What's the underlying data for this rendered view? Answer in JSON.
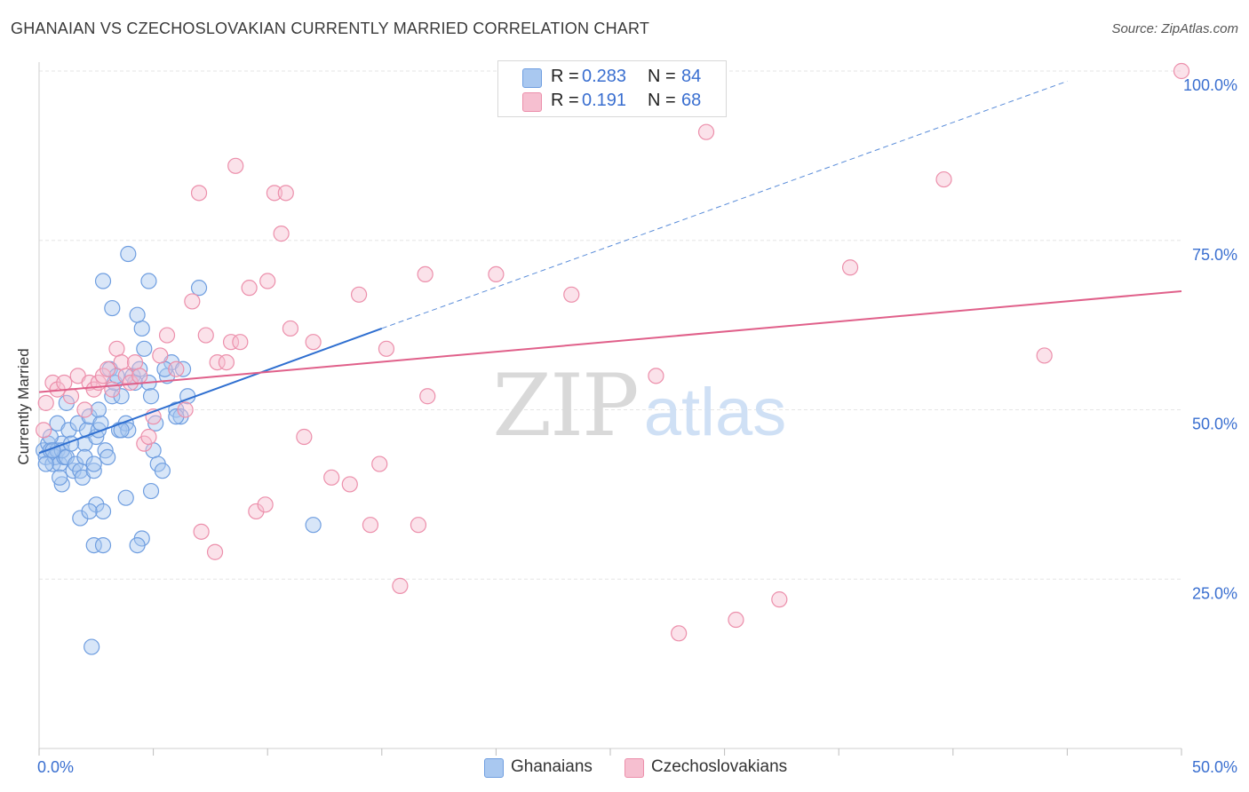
{
  "header": {
    "title": "GHANAIAN VS CZECHOSLOVAKIAN CURRENTLY MARRIED CORRELATION CHART",
    "source": "Source: ZipAtlas.com"
  },
  "watermark": {
    "zip": "ZIP",
    "atlas": "atlas"
  },
  "legend_top": {
    "rows": [
      {
        "r_label": "R =",
        "r_value": "0.283",
        "n_label": "N =",
        "n_value": "84"
      },
      {
        "r_label": "R =",
        "r_value": "0.191",
        "n_label": "N =",
        "n_value": "68"
      }
    ]
  },
  "legend_bottom": {
    "items": [
      {
        "label": "Ghanaians"
      },
      {
        "label": "Czechoslovakians"
      }
    ]
  },
  "colors": {
    "blue_fill": "#a9c8f0",
    "blue_stroke": "#6f9ee0",
    "blue_line": "#2f6fd0",
    "pink_fill": "#f6bfd0",
    "pink_stroke": "#ec8fab",
    "pink_line": "#e0608a",
    "tick_label": "#3a6fd0",
    "grid": "#e6e6e6"
  },
  "chart_data": {
    "type": "scatter",
    "title": "GHANAIAN VS CZECHOSLOVAKIAN CURRENTLY MARRIED CORRELATION CHART",
    "xlabel": "",
    "ylabel": "Currently Married",
    "xlim": [
      0,
      50
    ],
    "ylim": [
      0,
      105
    ],
    "x_tick_labels": [
      {
        "value": 0,
        "label": "0.0%"
      },
      {
        "value": 50,
        "label": "50.0%"
      }
    ],
    "y_tick_labels": [
      {
        "value": 25,
        "label": "25.0%"
      },
      {
        "value": 50,
        "label": "50.0%"
      },
      {
        "value": 75,
        "label": "75.0%"
      },
      {
        "value": 100,
        "label": "100.0%"
      }
    ],
    "grid": true,
    "legend_position": "top-center",
    "series": [
      {
        "name": "Ghanaians",
        "r": 0.283,
        "n": 84,
        "trend": {
          "x": [
            0,
            15
          ],
          "y": [
            43.6,
            62.0
          ],
          "extended_to": {
            "x": 45,
            "y": 98.5
          }
        },
        "points": [
          [
            0.2,
            44
          ],
          [
            0.3,
            43
          ],
          [
            0.4,
            45
          ],
          [
            0.5,
            44
          ],
          [
            0.6,
            42
          ],
          [
            0.7,
            43
          ],
          [
            0.8,
            44
          ],
          [
            0.9,
            42
          ],
          [
            1.0,
            45
          ],
          [
            1.1,
            43
          ],
          [
            0.3,
            42
          ],
          [
            0.5,
            46
          ],
          [
            0.8,
            48
          ],
          [
            1.0,
            44
          ],
          [
            1.2,
            43
          ],
          [
            1.3,
            47
          ],
          [
            1.5,
            41
          ],
          [
            1.6,
            42
          ],
          [
            1.7,
            48
          ],
          [
            1.8,
            41
          ],
          [
            1.9,
            40
          ],
          [
            2.0,
            45
          ],
          [
            2.0,
            43
          ],
          [
            2.1,
            47
          ],
          [
            2.2,
            49
          ],
          [
            2.4,
            41
          ],
          [
            2.5,
            46
          ],
          [
            2.5,
            36
          ],
          [
            2.6,
            47
          ],
          [
            2.7,
            48
          ],
          [
            2.8,
            35
          ],
          [
            2.9,
            44
          ],
          [
            3.0,
            43
          ],
          [
            3.1,
            56
          ],
          [
            3.2,
            52
          ],
          [
            3.3,
            54
          ],
          [
            3.4,
            55
          ],
          [
            3.5,
            47
          ],
          [
            3.6,
            52
          ],
          [
            3.8,
            48
          ],
          [
            3.9,
            47
          ],
          [
            4.1,
            55
          ],
          [
            4.2,
            54
          ],
          [
            4.4,
            56
          ],
          [
            4.5,
            62
          ],
          [
            4.6,
            59
          ],
          [
            4.8,
            54
          ],
          [
            4.9,
            52
          ],
          [
            5.0,
            44
          ],
          [
            5.1,
            48
          ],
          [
            5.2,
            42
          ],
          [
            5.4,
            41
          ],
          [
            5.6,
            55
          ],
          [
            5.8,
            57
          ],
          [
            6.0,
            50
          ],
          [
            6.2,
            49
          ],
          [
            6.3,
            56
          ],
          [
            6.5,
            52
          ],
          [
            3.9,
            73
          ],
          [
            4.8,
            69
          ],
          [
            2.8,
            69
          ],
          [
            3.2,
            65
          ],
          [
            4.3,
            64
          ],
          [
            7.0,
            68
          ],
          [
            1.0,
            39
          ],
          [
            1.8,
            34
          ],
          [
            2.2,
            35
          ],
          [
            2.4,
            30
          ],
          [
            2.8,
            30
          ],
          [
            3.8,
            37
          ],
          [
            4.5,
            31
          ],
          [
            4.9,
            38
          ],
          [
            2.3,
            15
          ],
          [
            4.3,
            30
          ],
          [
            6.0,
            49
          ],
          [
            5.5,
            56
          ],
          [
            1.2,
            51
          ],
          [
            2.4,
            42
          ],
          [
            0.6,
            44
          ],
          [
            0.9,
            40
          ],
          [
            1.4,
            45
          ],
          [
            2.6,
            50
          ],
          [
            3.6,
            47
          ],
          [
            12.0,
            33
          ]
        ]
      },
      {
        "name": "Czechoslovakians",
        "r": 0.191,
        "n": 68,
        "trend": {
          "x": [
            0,
            50
          ],
          "y": [
            52.6,
            67.5
          ]
        },
        "points": [
          [
            0.2,
            47
          ],
          [
            0.3,
            51
          ],
          [
            0.6,
            54
          ],
          [
            0.8,
            53
          ],
          [
            1.1,
            54
          ],
          [
            1.4,
            52
          ],
          [
            1.7,
            55
          ],
          [
            2.0,
            50
          ],
          [
            2.2,
            54
          ],
          [
            2.4,
            53
          ],
          [
            2.6,
            54
          ],
          [
            2.8,
            55
          ],
          [
            3.0,
            56
          ],
          [
            3.2,
            53
          ],
          [
            3.4,
            59
          ],
          [
            3.6,
            57
          ],
          [
            3.8,
            55
          ],
          [
            4.0,
            54
          ],
          [
            4.2,
            57
          ],
          [
            4.4,
            55
          ],
          [
            4.6,
            45
          ],
          [
            4.8,
            46
          ],
          [
            5.0,
            49
          ],
          [
            5.3,
            58
          ],
          [
            5.6,
            61
          ],
          [
            6.0,
            56
          ],
          [
            6.4,
            50
          ],
          [
            6.7,
            66
          ],
          [
            7.0,
            82
          ],
          [
            7.3,
            61
          ],
          [
            7.8,
            57
          ],
          [
            8.2,
            57
          ],
          [
            8.4,
            60
          ],
          [
            8.6,
            86
          ],
          [
            8.8,
            60
          ],
          [
            9.2,
            68
          ],
          [
            9.5,
            35
          ],
          [
            9.9,
            36
          ],
          [
            10.0,
            69
          ],
          [
            10.3,
            82
          ],
          [
            10.6,
            76
          ],
          [
            10.8,
            82
          ],
          [
            11.0,
            62
          ],
          [
            11.6,
            46
          ],
          [
            12.0,
            60
          ],
          [
            12.8,
            40
          ],
          [
            13.6,
            39
          ],
          [
            14.0,
            67
          ],
          [
            14.5,
            33
          ],
          [
            14.9,
            42
          ],
          [
            15.2,
            59
          ],
          [
            15.8,
            24
          ],
          [
            16.6,
            33
          ],
          [
            16.9,
            70
          ],
          [
            17.0,
            52
          ],
          [
            20.0,
            70
          ],
          [
            23.3,
            67
          ],
          [
            27.0,
            55
          ],
          [
            28.0,
            17
          ],
          [
            29.2,
            91
          ],
          [
            30.5,
            19
          ],
          [
            32.4,
            22
          ],
          [
            35.5,
            71
          ],
          [
            39.6,
            84
          ],
          [
            44.0,
            58
          ],
          [
            50.0,
            100
          ],
          [
            7.1,
            32
          ],
          [
            7.7,
            29
          ]
        ]
      }
    ]
  }
}
